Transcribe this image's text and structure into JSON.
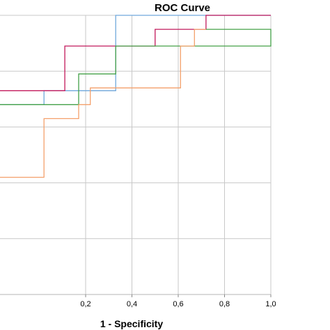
{
  "chart_data": {
    "type": "line",
    "title": "ROC Curve",
    "xlabel": "1 - Specificity",
    "ylabel": "",
    "xlim": [
      -0.17,
      1.0
    ],
    "ylim": [
      0.0,
      1.0
    ],
    "x_ticks": [
      "0,2",
      "0,4",
      "0,6",
      "0,8",
      "1,0"
    ],
    "x_tick_values": [
      0.2,
      0.4,
      0.6,
      0.8,
      1.0
    ],
    "y_grid_values": [
      0.2,
      0.4,
      0.6,
      0.8,
      1.0
    ],
    "grid": true,
    "step": true,
    "series": [
      {
        "color": "#6fa8dc",
        "points": [
          [
            -0.17,
            0.68
          ],
          [
            0.02,
            0.68
          ],
          [
            0.02,
            0.73
          ],
          [
            0.33,
            0.73
          ],
          [
            0.33,
            1.0
          ],
          [
            1.0,
            1.0
          ]
        ]
      },
      {
        "color": "#c2185b",
        "points": [
          [
            -0.17,
            0.73
          ],
          [
            0.11,
            0.73
          ],
          [
            0.11,
            0.89
          ],
          [
            0.5,
            0.89
          ],
          [
            0.5,
            0.95
          ],
          [
            0.72,
            0.95
          ],
          [
            0.72,
            1.0
          ],
          [
            1.0,
            1.0
          ]
        ]
      },
      {
        "color": "#43a047",
        "points": [
          [
            -0.17,
            0.68
          ],
          [
            0.17,
            0.68
          ],
          [
            0.17,
            0.79
          ],
          [
            0.33,
            0.79
          ],
          [
            0.33,
            0.89
          ],
          [
            1.0,
            0.89
          ],
          [
            1.0,
            0.95
          ],
          [
            0.72,
            0.95
          ]
        ]
      },
      {
        "color": "#f4a06b",
        "points": [
          [
            -0.17,
            0.42
          ],
          [
            0.02,
            0.42
          ],
          [
            0.02,
            0.63
          ],
          [
            0.17,
            0.63
          ],
          [
            0.17,
            0.68
          ],
          [
            0.22,
            0.68
          ],
          [
            0.22,
            0.74
          ],
          [
            0.61,
            0.74
          ],
          [
            0.61,
            0.89
          ],
          [
            0.67,
            0.89
          ],
          [
            0.67,
            0.95
          ],
          [
            0.72,
            0.95
          ]
        ]
      }
    ]
  }
}
